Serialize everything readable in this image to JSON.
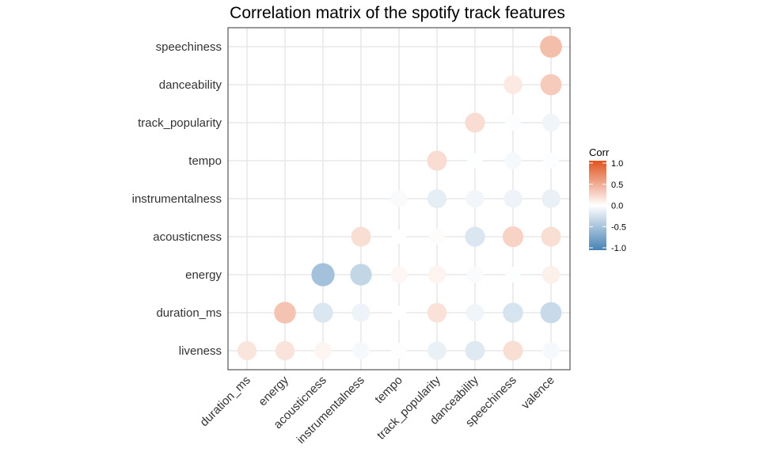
{
  "chart_data": {
    "type": "correlation-matrix",
    "title": "Correlation matrix of the spotify track features",
    "x_categories": [
      "duration_ms",
      "energy",
      "acousticness",
      "instrumentalness",
      "tempo",
      "track_popularity",
      "danceability",
      "speechiness",
      "valence"
    ],
    "y_categories": [
      "liveness",
      "duration_ms",
      "energy",
      "acousticness",
      "instrumentalness",
      "tempo",
      "track_popularity",
      "danceability",
      "speechiness"
    ],
    "cells": [
      {
        "x": "duration_ms",
        "y": "liveness",
        "value": 0.15
      },
      {
        "x": "energy",
        "y": "liveness",
        "value": 0.16
      },
      {
        "x": "acousticness",
        "y": "liveness",
        "value": 0.06
      },
      {
        "x": "instrumentalness",
        "y": "liveness",
        "value": -0.05
      },
      {
        "x": "tempo",
        "y": "liveness",
        "value": 0.01
      },
      {
        "x": "track_popularity",
        "y": "liveness",
        "value": -0.12
      },
      {
        "x": "danceability",
        "y": "liveness",
        "value": -0.18
      },
      {
        "x": "speechiness",
        "y": "liveness",
        "value": 0.19
      },
      {
        "x": "valence",
        "y": "liveness",
        "value": -0.05
      },
      {
        "x": "energy",
        "y": "duration_ms",
        "value": 0.35
      },
      {
        "x": "acousticness",
        "y": "duration_ms",
        "value": -0.2
      },
      {
        "x": "instrumentalness",
        "y": "duration_ms",
        "value": -0.1
      },
      {
        "x": "tempo",
        "y": "duration_ms",
        "value": 0.0
      },
      {
        "x": "track_popularity",
        "y": "duration_ms",
        "value": 0.17
      },
      {
        "x": "danceability",
        "y": "duration_ms",
        "value": -0.08
      },
      {
        "x": "speechiness",
        "y": "duration_ms",
        "value": -0.22
      },
      {
        "x": "valence",
        "y": "duration_ms",
        "value": -0.3
      },
      {
        "x": "acousticness",
        "y": "energy",
        "value": -0.5
      },
      {
        "x": "instrumentalness",
        "y": "energy",
        "value": -0.33
      },
      {
        "x": "tempo",
        "y": "energy",
        "value": 0.05
      },
      {
        "x": "track_popularity",
        "y": "energy",
        "value": 0.07
      },
      {
        "x": "danceability",
        "y": "energy",
        "value": -0.03
      },
      {
        "x": "speechiness",
        "y": "energy",
        "value": -0.01
      },
      {
        "x": "valence",
        "y": "energy",
        "value": 0.09
      },
      {
        "x": "instrumentalness",
        "y": "acousticness",
        "value": 0.19
      },
      {
        "x": "tempo",
        "y": "acousticness",
        "value": 0.0
      },
      {
        "x": "track_popularity",
        "y": "acousticness",
        "value": 0.02
      },
      {
        "x": "danceability",
        "y": "acousticness",
        "value": -0.2
      },
      {
        "x": "speechiness",
        "y": "acousticness",
        "value": 0.26
      },
      {
        "x": "valence",
        "y": "acousticness",
        "value": 0.19
      },
      {
        "x": "tempo",
        "y": "instrumentalness",
        "value": -0.04
      },
      {
        "x": "track_popularity",
        "y": "instrumentalness",
        "value": -0.14
      },
      {
        "x": "danceability",
        "y": "instrumentalness",
        "value": -0.07
      },
      {
        "x": "speechiness",
        "y": "instrumentalness",
        "value": -0.1
      },
      {
        "x": "valence",
        "y": "instrumentalness",
        "value": -0.12
      },
      {
        "x": "track_popularity",
        "y": "tempo",
        "value": 0.2
      },
      {
        "x": "danceability",
        "y": "tempo",
        "value": -0.01
      },
      {
        "x": "speechiness",
        "y": "tempo",
        "value": -0.05
      },
      {
        "x": "valence",
        "y": "tempo",
        "value": -0.02
      },
      {
        "x": "danceability",
        "y": "track_popularity",
        "value": 0.2
      },
      {
        "x": "speechiness",
        "y": "track_popularity",
        "value": -0.02
      },
      {
        "x": "valence",
        "y": "track_popularity",
        "value": -0.08
      },
      {
        "x": "speechiness",
        "y": "danceability",
        "value": 0.13
      },
      {
        "x": "valence",
        "y": "danceability",
        "value": 0.3
      },
      {
        "x": "valence",
        "y": "speechiness",
        "value": 0.38
      }
    ],
    "grid": true,
    "legend": {
      "title": "Corr",
      "placement": "right",
      "ticks": [
        "1.0",
        "0.5",
        "0.0",
        "-0.5",
        "-1.0"
      ],
      "range": [
        -1,
        1
      ],
      "colors": {
        "low": "#4682B4",
        "mid": "#FFFFFF",
        "high": "#E0531F"
      }
    }
  }
}
